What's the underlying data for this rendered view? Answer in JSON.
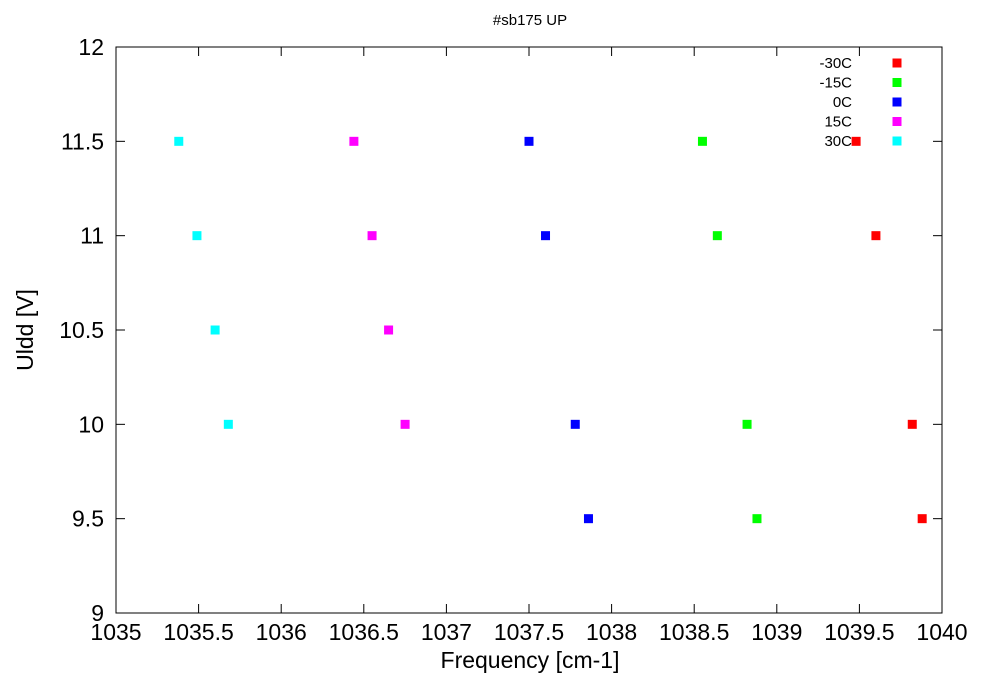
{
  "chart_data": {
    "type": "scatter",
    "title": "#sb175 UP",
    "xlabel": "Frequency [cm-1]",
    "ylabel": "Uldd [V]",
    "xlim": [
      1035,
      1040
    ],
    "ylim": [
      9,
      12
    ],
    "xticks": [
      1035,
      1035.5,
      1036,
      1036.5,
      1037,
      1037.5,
      1038,
      1038.5,
      1039,
      1039.5,
      1040
    ],
    "yticks": [
      9,
      9.5,
      10,
      10.5,
      11,
      11.5,
      12
    ],
    "grid": false,
    "legend_position": "top-right",
    "series": [
      {
        "name": "-30C",
        "color": "#ff0000",
        "points": [
          [
            1039.48,
            11.5
          ],
          [
            1039.6,
            11.0
          ],
          [
            1039.82,
            10.0
          ],
          [
            1039.88,
            9.5
          ]
        ]
      },
      {
        "name": "-15C",
        "color": "#00ff00",
        "points": [
          [
            1038.55,
            11.5
          ],
          [
            1038.64,
            11.0
          ],
          [
            1038.82,
            10.0
          ],
          [
            1038.88,
            9.5
          ]
        ]
      },
      {
        "name": "0C",
        "color": "#0000ff",
        "points": [
          [
            1037.5,
            11.5
          ],
          [
            1037.6,
            11.0
          ],
          [
            1037.78,
            10.0
          ],
          [
            1037.86,
            9.5
          ]
        ]
      },
      {
        "name": "15C",
        "color": "#ff00ff",
        "points": [
          [
            1036.44,
            11.5
          ],
          [
            1036.55,
            11.0
          ],
          [
            1036.65,
            10.5
          ],
          [
            1036.75,
            10.0
          ]
        ]
      },
      {
        "name": "30C",
        "color": "#00ffff",
        "points": [
          [
            1035.38,
            11.5
          ],
          [
            1035.49,
            11.0
          ],
          [
            1035.6,
            10.5
          ],
          [
            1035.68,
            10.0
          ]
        ]
      }
    ]
  }
}
